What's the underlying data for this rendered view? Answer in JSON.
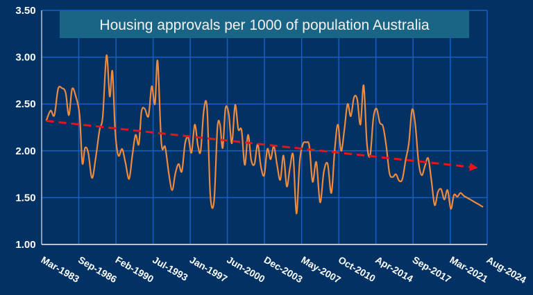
{
  "chart_data": {
    "type": "line",
    "title": "Housing approvals per 1000 of population Australia",
    "xlabel": "",
    "ylabel": "",
    "ylim": [
      1.0,
      3.5
    ],
    "xlim": [
      1983.17,
      2024.58
    ],
    "grid": true,
    "legend": "none",
    "y_ticks": [
      "1.00",
      "1.50",
      "2.00",
      "2.50",
      "3.00",
      "3.50"
    ],
    "y_tick_values": [
      1.0,
      1.5,
      2.0,
      2.5,
      3.0,
      3.5
    ],
    "x_ticks": [
      "Mar-1983",
      "Sep-1986",
      "Feb-1990",
      "Jul-1993",
      "Jan-1997",
      "Jun-2000",
      "Dec-2003",
      "May-2007",
      "Oct-2010",
      "Apr-2014",
      "Sep-2017",
      "Mar-2021",
      "Aug-2024"
    ],
    "x_tick_values": [
      1983.17,
      1986.62,
      1990.08,
      1993.53,
      1996.98,
      2000.43,
      2003.88,
      2007.34,
      2010.79,
      2014.24,
      2017.69,
      2021.15,
      2024.58
    ],
    "colors": {
      "background": "#023163",
      "grid": "#1a5fc4",
      "axis": "#b8c4d4",
      "series": "#f08a3c",
      "trend": "#e8141c",
      "title_box": "#1a6585"
    },
    "series": [
      {
        "name": "Housing approvals per 1000",
        "x": [
          1983.6,
          1984.0,
          1984.35,
          1984.7,
          1985.05,
          1985.4,
          1985.7,
          1986.0,
          1986.35,
          1986.7,
          1986.95,
          1987.2,
          1987.5,
          1987.85,
          1988.2,
          1988.55,
          1988.85,
          1989.2,
          1989.5,
          1989.75,
          1990.0,
          1990.3,
          1990.65,
          1990.95,
          1991.3,
          1991.6,
          1991.9,
          1992.2,
          1992.45,
          1992.75,
          1993.1,
          1993.4,
          1993.7,
          1993.95,
          1994.3,
          1994.65,
          1995.0,
          1995.3,
          1995.6,
          1995.9,
          1996.2,
          1996.5,
          1996.8,
          1997.1,
          1997.4,
          1997.7,
          1997.95,
          1998.25,
          1998.55,
          1998.85,
          1999.2,
          1999.5,
          1999.75,
          2000.0,
          2000.25,
          2000.55,
          2000.85,
          2001.15,
          2001.45,
          2001.75,
          2002.05,
          2002.35,
          2002.65,
          2002.95,
          2003.25,
          2003.55,
          2003.85,
          2004.15,
          2004.45,
          2004.75,
          2005.05,
          2005.35,
          2005.65,
          2005.95,
          2006.25,
          2006.55,
          2006.85,
          2007.15,
          2007.45,
          2007.75,
          2008.05,
          2008.35,
          2008.7,
          2009.05,
          2009.4,
          2009.75,
          2010.1,
          2010.4,
          2010.7,
          2011.0,
          2011.3,
          2011.6,
          2011.9,
          2012.2,
          2012.5,
          2012.8,
          2013.1,
          2013.4,
          2013.7,
          2014.0,
          2014.3,
          2014.6,
          2014.9,
          2015.2,
          2015.5,
          2015.8,
          2016.1,
          2016.4,
          2016.7,
          2017.0,
          2017.3,
          2017.6,
          2017.9,
          2018.2,
          2018.5,
          2018.8,
          2019.1,
          2019.4,
          2019.7,
          2020.0,
          2020.3,
          2020.6,
          2020.9,
          2021.2,
          2021.5,
          2021.8,
          2022.1,
          2022.4,
          2022.7,
          2023.0,
          2023.3,
          2023.6,
          2023.9,
          2024.2
        ],
        "values": [
          2.32,
          2.43,
          2.38,
          2.66,
          2.67,
          2.62,
          2.38,
          2.66,
          2.58,
          2.38,
          1.87,
          2.03,
          1.98,
          1.71,
          1.93,
          2.22,
          2.37,
          3.02,
          2.58,
          2.85,
          2.22,
          1.95,
          2.02,
          1.88,
          1.7,
          1.95,
          2.17,
          2.07,
          2.42,
          2.45,
          2.37,
          2.69,
          2.5,
          2.96,
          2.08,
          2.04,
          1.75,
          1.58,
          1.76,
          1.86,
          1.78,
          2.08,
          2.14,
          1.98,
          2.28,
          2.05,
          2.0,
          2.44,
          2.45,
          1.52,
          1.47,
          2.24,
          2.28,
          2.03,
          2.45,
          2.4,
          2.08,
          2.49,
          2.23,
          2.22,
          1.85,
          2.17,
          1.9,
          1.86,
          2.07,
          1.83,
          1.74,
          2.02,
          1.91,
          2.05,
          1.85,
          1.69,
          1.95,
          1.62,
          1.82,
          1.95,
          1.33,
          1.88,
          2.07,
          2.09,
          2.05,
          1.67,
          1.88,
          1.45,
          1.78,
          1.86,
          1.55,
          2.0,
          2.28,
          2.0,
          2.22,
          2.5,
          2.37,
          2.57,
          2.55,
          2.28,
          2.7,
          2.08,
          1.95,
          2.35,
          2.45,
          2.3,
          2.26,
          2.05,
          1.76,
          1.72,
          1.75,
          1.68,
          1.7,
          1.9,
          2.08,
          2.44,
          2.28,
          1.88,
          1.74,
          1.84,
          1.92,
          1.68,
          1.42,
          1.56,
          1.59,
          1.48,
          1.58,
          1.38,
          1.53,
          1.51,
          1.55,
          1.52,
          1.5,
          1.48,
          1.46,
          1.44,
          1.42,
          1.4
        ]
      }
    ],
    "trendline": {
      "name": "Trend",
      "x": [
        1983.6,
        2023.6
      ],
      "values": [
        2.32,
        1.82
      ]
    }
  }
}
